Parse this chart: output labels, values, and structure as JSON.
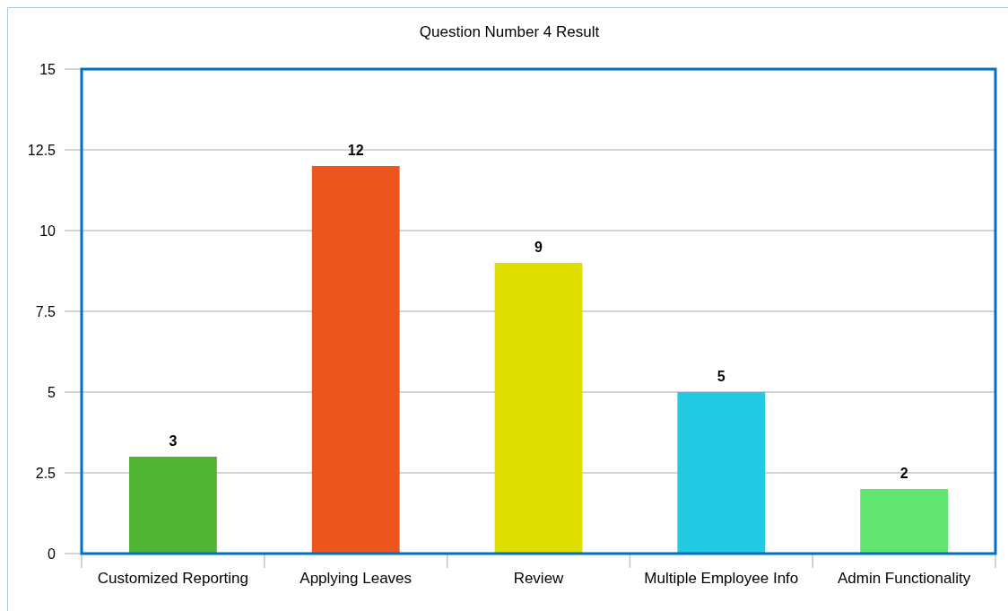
{
  "chart_data": {
    "type": "bar",
    "title": "Question Number 4 Result",
    "categories": [
      "Customized Reporting",
      "Applying Leaves",
      "Review",
      "Multiple Employee Info",
      "Admin Functionality"
    ],
    "values": [
      3,
      12,
      9,
      5,
      2
    ],
    "colors": [
      "#52b435",
      "#ec561e",
      "#dede00",
      "#24c9e4",
      "#62e471"
    ],
    "ylim": [
      0,
      15
    ],
    "yticks": [
      0,
      2.5,
      5,
      7.5,
      10,
      12.5,
      15
    ],
    "grid": "y",
    "data_labels": true
  }
}
